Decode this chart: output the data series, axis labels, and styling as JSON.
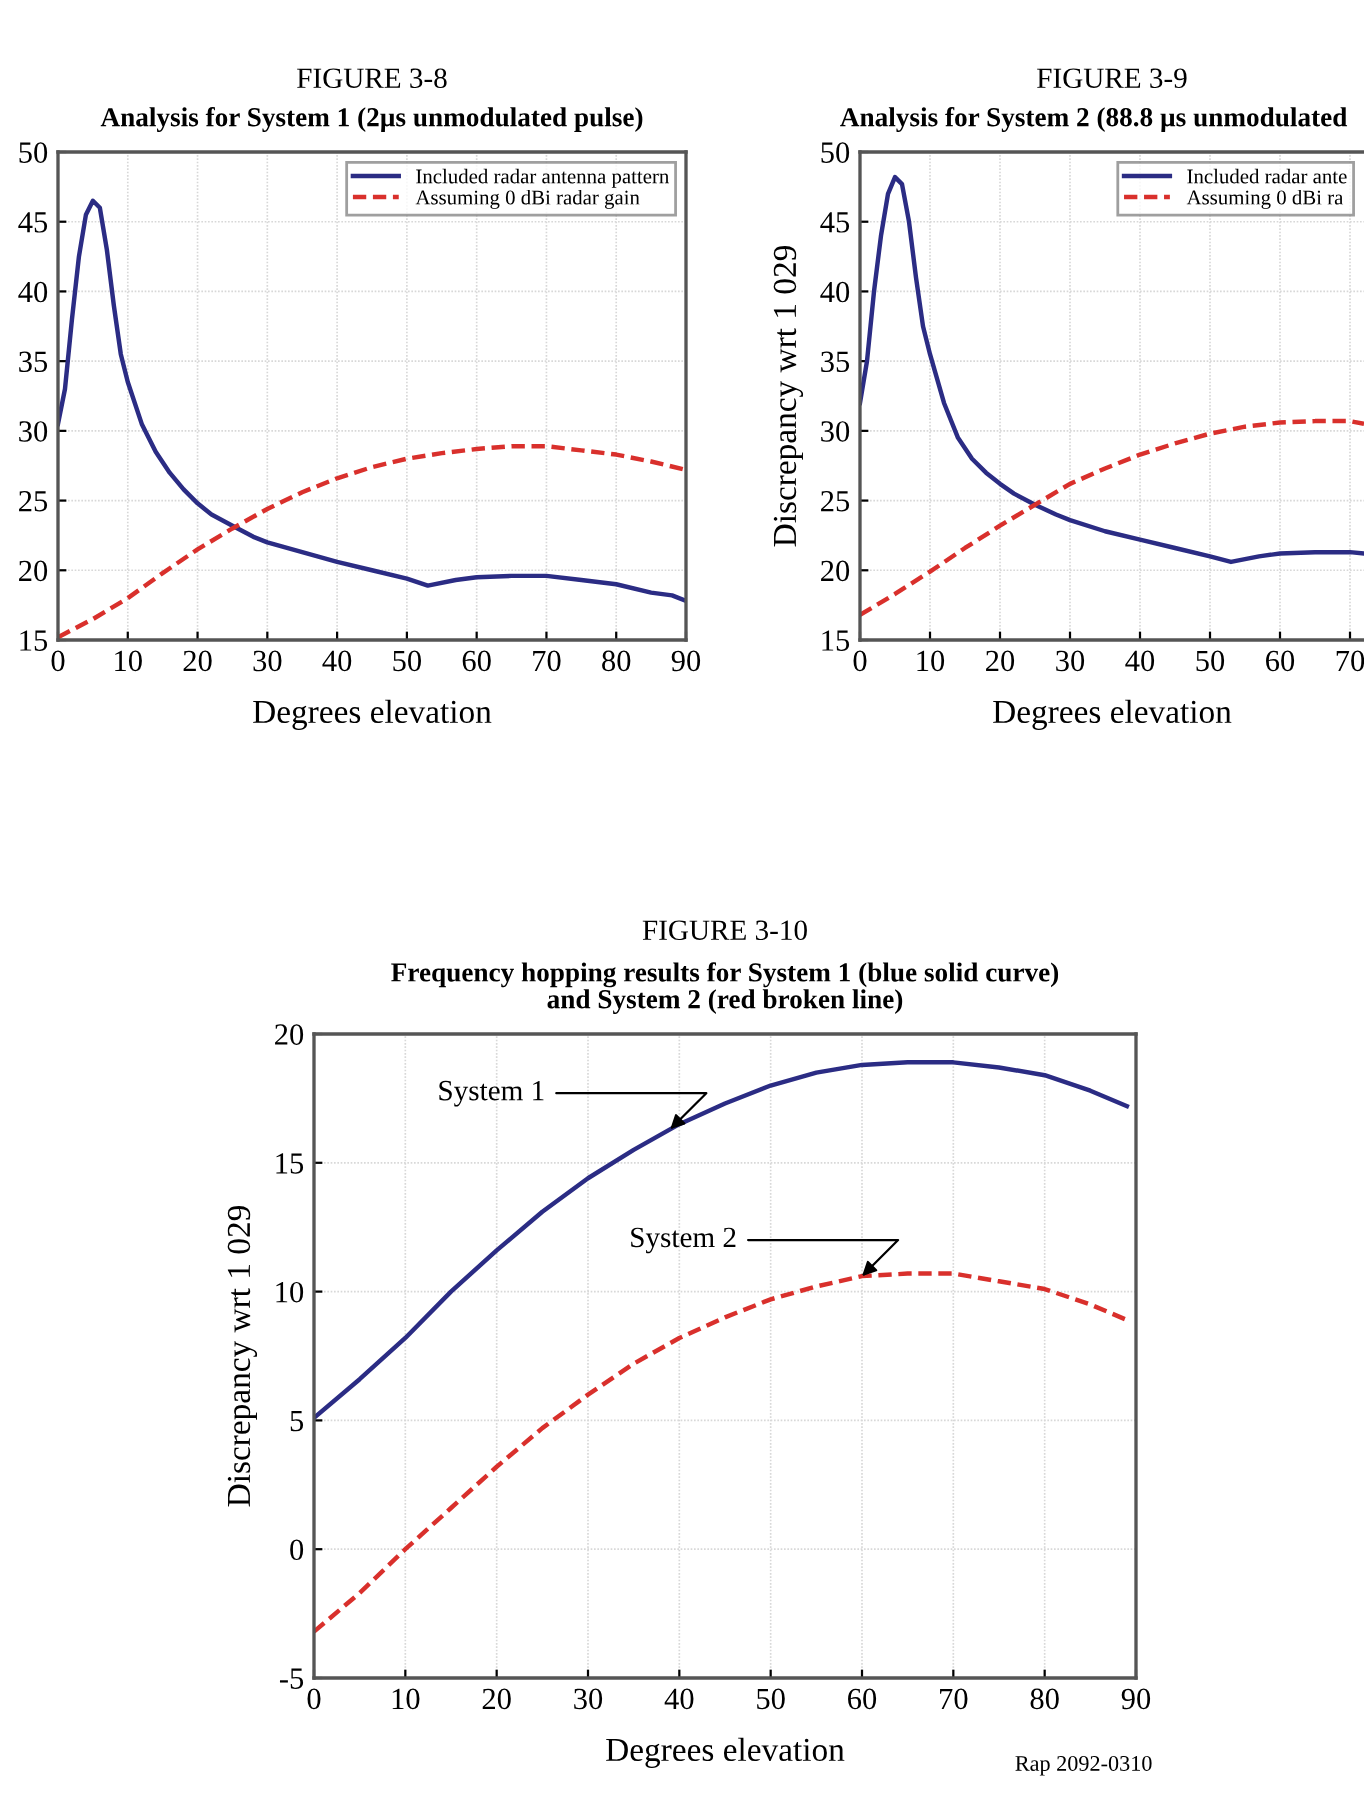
{
  "chart_data": [
    {
      "type": "line",
      "title": "FIGURE 3-8",
      "subtitle": "Analysis for System 1 (2µs unmodulated pulse)",
      "xlabel": "Degrees elevation",
      "xlim": [
        0,
        90
      ],
      "xticks": [
        0,
        10,
        20,
        30,
        40,
        50,
        60,
        70,
        80,
        90
      ],
      "ylim": [
        15,
        50
      ],
      "yticks": [
        15,
        20,
        25,
        30,
        35,
        40,
        45,
        50
      ],
      "grid": true,
      "legend": "top right",
      "series": [
        {
          "name": "Included radar antenna pattern",
          "color": "#2b2c84",
          "line_style": "solid",
          "x": [
            0,
            1,
            2,
            3,
            4,
            5,
            6,
            7,
            8,
            9,
            10,
            12,
            14,
            16,
            18,
            20,
            22,
            25,
            28,
            30,
            35,
            40,
            45,
            50,
            53,
            57,
            60,
            65,
            70,
            75,
            80,
            85,
            88,
            90
          ],
          "values": [
            30.5,
            33,
            38,
            42.5,
            45.5,
            46.5,
            46,
            43,
            39,
            35.5,
            33.5,
            30.5,
            28.5,
            27,
            25.8,
            24.8,
            24,
            23.2,
            22.4,
            22,
            21.3,
            20.6,
            20,
            19.4,
            18.9,
            19.3,
            19.5,
            19.6,
            19.6,
            19.3,
            19,
            18.4,
            18.2,
            17.8
          ]
        },
        {
          "name": "Assuming 0 dBi radar gain",
          "color": "#d9302c",
          "line_style": "dashed",
          "x": [
            0,
            5,
            10,
            15,
            20,
            25,
            30,
            35,
            40,
            45,
            50,
            55,
            60,
            65,
            70,
            75,
            80,
            85,
            90
          ],
          "values": [
            15.2,
            16.5,
            18,
            19.8,
            21.5,
            23,
            24.4,
            25.6,
            26.6,
            27.4,
            28,
            28.4,
            28.7,
            28.9,
            28.9,
            28.6,
            28.3,
            27.8,
            27.2
          ]
        }
      ]
    },
    {
      "type": "line",
      "title": "FIGURE 3-9",
      "subtitle": "Analysis for System 2 (88.8 µs unmodulated",
      "xlabel": "Degrees elevation",
      "ylabel": "Discrepancy wrt 1 029",
      "xlim": [
        0,
        72
      ],
      "xticks": [
        0,
        10,
        20,
        30,
        40,
        50,
        60,
        70
      ],
      "ylim": [
        15,
        50
      ],
      "yticks": [
        15,
        20,
        25,
        30,
        35,
        40,
        45,
        50
      ],
      "grid": true,
      "legend": "top right",
      "series": [
        {
          "name": "Included radar ante",
          "color": "#2b2c84",
          "line_style": "solid",
          "x": [
            0,
            1,
            2,
            3,
            4,
            5,
            6,
            7,
            8,
            9,
            10,
            12,
            14,
            16,
            18,
            20,
            22,
            25,
            28,
            30,
            35,
            40,
            45,
            50,
            53,
            57,
            60,
            65,
            70,
            72
          ],
          "values": [
            32,
            35,
            40,
            44,
            47,
            48.2,
            47.7,
            45,
            41,
            37.5,
            35.5,
            32,
            29.5,
            28,
            27,
            26.2,
            25.5,
            24.7,
            24,
            23.6,
            22.8,
            22.2,
            21.6,
            21,
            20.6,
            21,
            21.2,
            21.3,
            21.3,
            21.2
          ]
        },
        {
          "name": "Assuming 0 dBi ra",
          "color": "#d9302c",
          "line_style": "dashed",
          "x": [
            0,
            5,
            10,
            15,
            20,
            25,
            30,
            35,
            40,
            45,
            50,
            55,
            60,
            65,
            70,
            72
          ],
          "values": [
            16.8,
            18.3,
            19.9,
            21.6,
            23.2,
            24.7,
            26.2,
            27.3,
            28.3,
            29.1,
            29.8,
            30.3,
            30.6,
            30.7,
            30.7,
            30.5
          ]
        }
      ]
    },
    {
      "type": "line",
      "title": "FIGURE 3-10",
      "subtitle": "Frequency hopping results for System 1 (blue solid curve)\nand System 2 (red broken line)",
      "xlabel": "Degrees elevation",
      "ylabel": "Discrepancy wrt 1 029",
      "xlim": [
        0,
        90
      ],
      "xticks": [
        0,
        10,
        20,
        30,
        40,
        50,
        60,
        70,
        80,
        90
      ],
      "ylim": [
        -5,
        20
      ],
      "yticks": [
        -5,
        0,
        5,
        10,
        15,
        20
      ],
      "grid": true,
      "series": [
        {
          "color": "#2b2c84",
          "line_style": "solid",
          "x": [
            0,
            5,
            10,
            15,
            20,
            25,
            30,
            35,
            40,
            45,
            50,
            55,
            60,
            65,
            70,
            75,
            80,
            85,
            89
          ],
          "values": [
            5.1,
            6.6,
            8.2,
            10,
            11.6,
            13.1,
            14.4,
            15.5,
            16.5,
            17.3,
            18,
            18.5,
            18.8,
            18.9,
            18.9,
            18.7,
            18.4,
            17.8,
            17.2
          ]
        },
        {
          "color": "#d9302c",
          "line_style": "dashed",
          "x": [
            0,
            5,
            10,
            15,
            20,
            25,
            30,
            35,
            40,
            45,
            50,
            55,
            60,
            65,
            70,
            75,
            80,
            85,
            89
          ],
          "values": [
            -3.2,
            -1.7,
            0,
            1.6,
            3.2,
            4.7,
            6,
            7.2,
            8.2,
            9,
            9.7,
            10.2,
            10.6,
            10.7,
            10.7,
            10.4,
            10.1,
            9.5,
            8.9
          ]
        }
      ],
      "annotations": [
        {
          "text": "System 1",
          "x": 39,
          "y": 16.3
        },
        {
          "text": "System 2",
          "x": 60,
          "y": 10.6
        },
        "Rap 2092-0310"
      ]
    }
  ]
}
